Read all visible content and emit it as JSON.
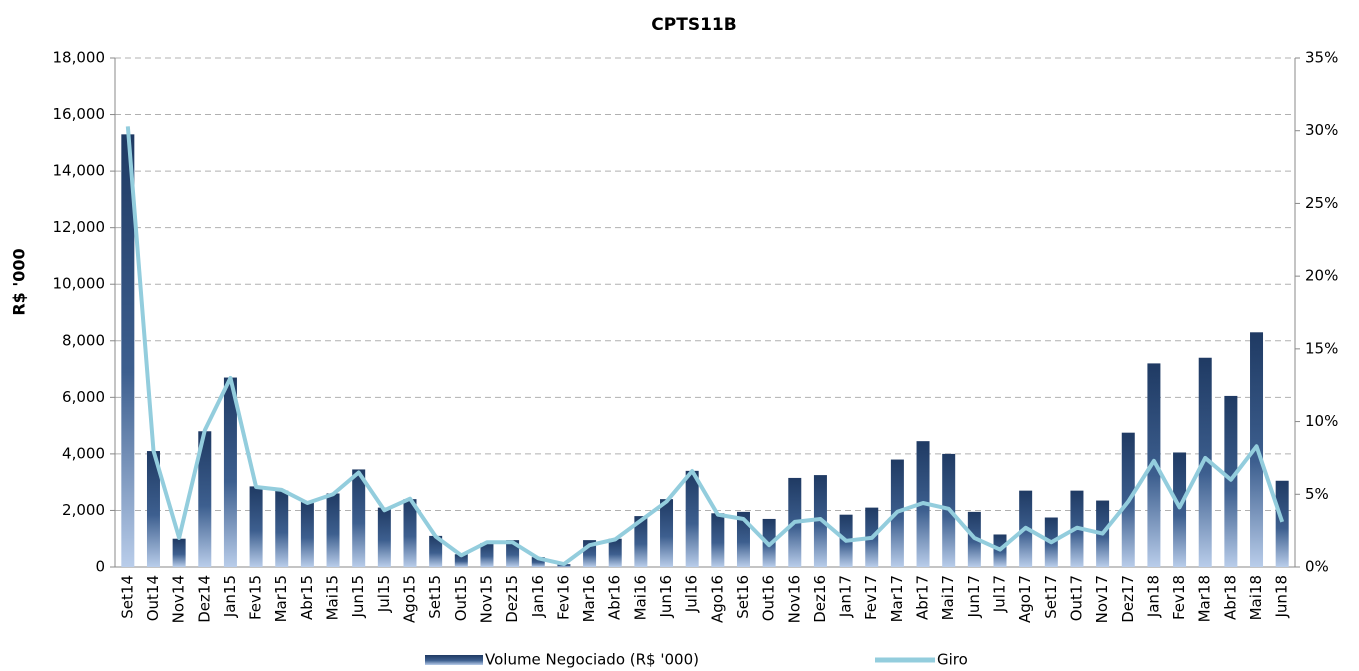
{
  "chart_data": {
    "type": "bar-line",
    "title": "CPTS11B",
    "y_label": "R$ '000",
    "categories": [
      "Set14",
      "Out14",
      "Nov14",
      "Dez14",
      "Jan15",
      "Fev15",
      "Mar15",
      "Abr15",
      "Mai15",
      "Jun15",
      "Jul15",
      "Ago15",
      "Set15",
      "Out15",
      "Nov15",
      "Dez15",
      "Jan16",
      "Fev16",
      "Mar16",
      "Abr16",
      "Mai16",
      "Jun16",
      "Jul16",
      "Ago16",
      "Set16",
      "Out16",
      "Nov16",
      "Dez16",
      "Jan17",
      "Fev17",
      "Mar17",
      "Abr17",
      "Mai17",
      "Jun17",
      "Jul17",
      "Ago17",
      "Set17",
      "Out17",
      "Nov17",
      "Dez17",
      "Jan18",
      "Fev18",
      "Mar18",
      "Abr18",
      "Mai18",
      "Jun18"
    ],
    "series": [
      {
        "name": "Volume Negociado (R$ '000)",
        "color": "#1f3a63",
        "type": "bar",
        "values": [
          15300,
          4100,
          1000,
          4800,
          6700,
          2850,
          2700,
          2300,
          2600,
          3450,
          2100,
          2400,
          1100,
          450,
          850,
          950,
          350,
          100,
          950,
          1000,
          1800,
          2400,
          3400,
          1900,
          1950,
          1700,
          3150,
          3250,
          1850,
          2100,
          3800,
          4450,
          4000,
          1950,
          1150,
          2700,
          1750,
          2700,
          2350,
          4750,
          7200,
          4050,
          7400,
          6050,
          8300,
          3050
        ]
      },
      {
        "name": "Giro",
        "color": "#93cddd",
        "type": "line",
        "axis": "y2",
        "values": [
          30.3,
          8.0,
          2.0,
          9.4,
          13.0,
          5.5,
          5.3,
          4.4,
          5.0,
          6.5,
          3.9,
          4.7,
          2.1,
          0.8,
          1.7,
          1.7,
          0.6,
          0.2,
          1.5,
          1.9,
          3.2,
          4.5,
          6.6,
          3.6,
          3.3,
          1.5,
          3.1,
          3.3,
          1.8,
          2.0,
          3.8,
          4.4,
          4.0,
          2.0,
          1.2,
          2.7,
          1.7,
          2.7,
          2.3,
          4.5,
          7.3,
          4.1,
          7.5,
          6.0,
          8.3,
          3.1
        ]
      }
    ],
    "ylim": [
      0,
      18000
    ],
    "yticks": [
      0,
      {
        "value": 2000,
        "label": "2,000"
      },
      {
        "value": 4000,
        "label": "4,000"
      },
      {
        "value": 6000,
        "label": "6,000"
      },
      {
        "value": 8000,
        "label": "8,000"
      },
      {
        "value": 10000,
        "label": "10,000"
      },
      {
        "value": 12000,
        "label": "12,000"
      },
      {
        "value": 14000,
        "label": "14,000"
      },
      {
        "value": 16000,
        "label": "16,000"
      },
      {
        "value": 18000,
        "label": "18,000"
      }
    ],
    "y2lim": [
      0,
      35
    ],
    "y2ticks": [
      {
        "value": 0,
        "label": "0%"
      },
      {
        "value": 5,
        "label": "5%"
      },
      {
        "value": 10,
        "label": "10%"
      },
      {
        "value": 15,
        "label": "15%"
      },
      {
        "value": 20,
        "label": "20%"
      },
      {
        "value": 25,
        "label": "25%"
      },
      {
        "value": 30,
        "label": "30%"
      },
      {
        "value": 35,
        "label": "35%"
      }
    ],
    "grid": true,
    "legend": "bottom"
  }
}
